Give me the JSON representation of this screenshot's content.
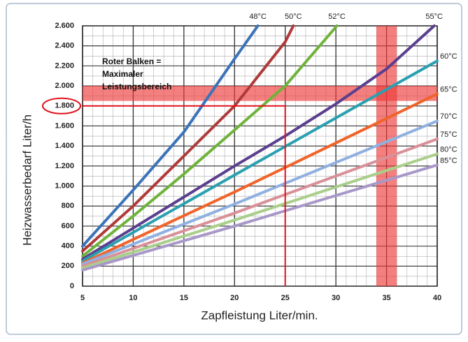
{
  "chart_data": {
    "type": "line",
    "xlabel": "Zapfleistung Liter/min.",
    "ylabel": "Heizwasserbedarf Liter/h",
    "annotation": [
      "Roter Balken =",
      "Maximaler",
      "Leistungsbereich"
    ],
    "xlim": [
      5,
      40
    ],
    "xticks": [
      5,
      10,
      15,
      20,
      25,
      30,
      35,
      40
    ],
    "ylim": [
      0,
      2600
    ],
    "yticks": [
      0,
      200,
      400,
      600,
      800,
      {
        "value": 1000,
        "label": "1.000"
      },
      {
        "value": 1200,
        "label": "1.200"
      },
      {
        "value": 1400,
        "label": "1.400"
      },
      {
        "value": 1600,
        "label": "1.600"
      },
      {
        "value": 1800,
        "label": "1.800"
      },
      {
        "value": 2000,
        "label": "2.000"
      },
      {
        "value": 2200,
        "label": "2.200"
      },
      {
        "value": 2400,
        "label": "2.400"
      },
      {
        "value": 2600,
        "label": "2.600"
      }
    ],
    "grid": true,
    "bands": [
      {
        "axis": "y",
        "range": [
          1850,
          2000
        ],
        "color": "#ee3b3b"
      },
      {
        "axis": "x",
        "range": [
          34,
          36
        ],
        "color": "#ee3b3b"
      }
    ],
    "marker": {
      "x": 25,
      "y": 1800,
      "color": "#e0101a"
    },
    "series": [
      {
        "name": "48°C",
        "color": "#3b73b9",
        "x": [
          5,
          10,
          15,
          20,
          22.3
        ],
        "values": [
          400,
          960,
          1540,
          2270,
          2600
        ]
      },
      {
        "name": "50°C",
        "color": "#b03a3a",
        "x": [
          5,
          10,
          15,
          20,
          25,
          25.8
        ],
        "values": [
          350,
          800,
          1300,
          1800,
          2440,
          2600
        ]
      },
      {
        "name": "52°C",
        "color": "#6fb33b",
        "x": [
          5,
          10,
          15,
          20,
          25,
          30.1
        ],
        "values": [
          300,
          700,
          1120,
          1560,
          2000,
          2600
        ]
      },
      {
        "name": "55°C",
        "color": "#5b3f8f",
        "x": [
          5,
          10,
          15,
          20,
          25,
          30,
          35,
          39.7
        ],
        "values": [
          270,
          580,
          890,
          1200,
          1500,
          1820,
          2170,
          2600
        ]
      },
      {
        "name": "60°C",
        "color": "#2aa0b0",
        "x": [
          5,
          20,
          40
        ],
        "values": [
          250,
          1110,
          2250
        ]
      },
      {
        "name": "65°C",
        "color": "#f0642a",
        "x": [
          5,
          20,
          40
        ],
        "values": [
          230,
          940,
          1920
        ]
      },
      {
        "name": "70°C",
        "color": "#8fb0e0",
        "x": [
          5,
          20,
          40
        ],
        "values": [
          220,
          820,
          1650
        ]
      },
      {
        "name": "75°C",
        "color": "#d99098",
        "x": [
          5,
          20,
          40
        ],
        "values": [
          200,
          730,
          1470
        ]
      },
      {
        "name": "80°C",
        "color": "#a9cf8a",
        "x": [
          5,
          20,
          40
        ],
        "values": [
          180,
          660,
          1320
        ]
      },
      {
        "name": "85°C",
        "color": "#a898c8",
        "x": [
          5,
          20,
          40
        ],
        "values": [
          160,
          600,
          1210
        ]
      }
    ]
  }
}
